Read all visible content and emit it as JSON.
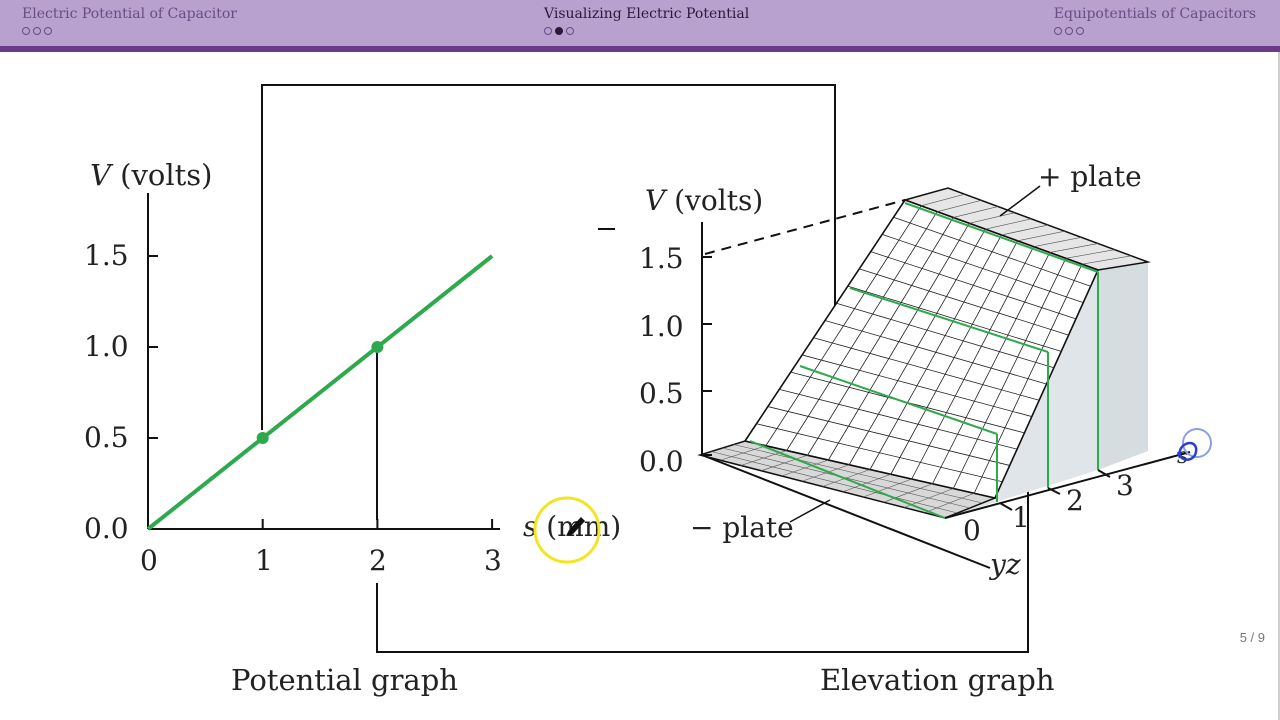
{
  "nav": {
    "sections": [
      {
        "title": "Electric Potential of Capacitor",
        "dots": [
          0,
          0,
          0
        ],
        "active": false
      },
      {
        "title": "Visualizing Electric Potential",
        "dots": [
          0,
          1,
          0
        ],
        "active": true
      },
      {
        "title": "Equipotentials of Capacitors",
        "dots": [
          0,
          0,
          0
        ],
        "active": false
      }
    ]
  },
  "colors": {
    "topbar": "#b8a0cf",
    "topbar_strip": "#6b3b8a",
    "line_green": "#2ea94e",
    "highlight_yellow": "#f4e524",
    "annotation_blue": "#2a3fd1"
  },
  "figure": {
    "left": {
      "ylabel_italic": "V",
      "ylabel_rest": " (volts)",
      "yticks": [
        "1.5",
        "1.0",
        "0.5",
        "0.0"
      ],
      "xticks": [
        "0",
        "1",
        "2",
        "3"
      ],
      "xlabel_italic": "s",
      "xlabel_rest": " (mm)",
      "caption": "Potential graph"
    },
    "right": {
      "ylabel_italic": "V",
      "ylabel_rest": " (volts)",
      "yticks": [
        "1.5",
        "1.0",
        "0.5",
        "0.0"
      ],
      "xticks": [
        "0",
        "1",
        "2",
        "3"
      ],
      "plus_plate": "+ plate",
      "minus_plate": "− plate",
      "axis_yz": "yz",
      "axis_s": "s",
      "caption": "Elevation graph"
    },
    "chart_data": {
      "type": "line",
      "x": [
        0,
        1,
        2,
        3
      ],
      "y": [
        0,
        0.5,
        1.0,
        1.5
      ],
      "highlighted_points": [
        [
          1,
          0.5
        ],
        [
          2,
          1.0
        ]
      ],
      "xlim": [
        0,
        3
      ],
      "ylim": [
        0,
        1.5
      ]
    }
  },
  "page_number": "5 / 9"
}
